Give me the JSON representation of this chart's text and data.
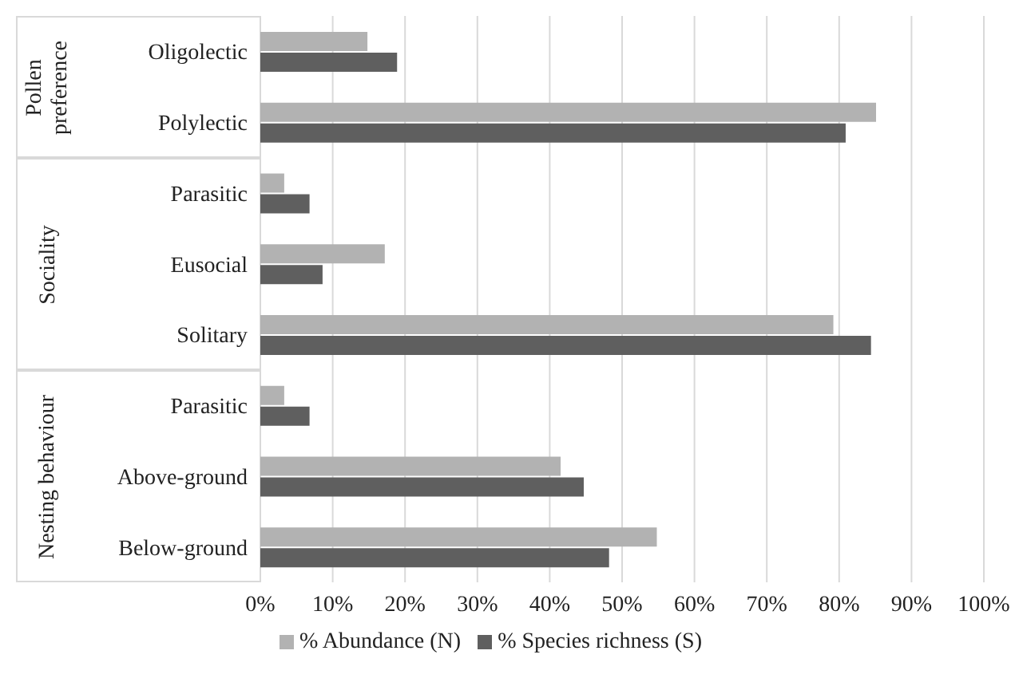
{
  "chart_data": {
    "type": "bar",
    "orientation": "horizontal",
    "categories": [
      "Oligolectic",
      "Polylectic",
      "Parasitic",
      "Eusocial",
      "Solitary",
      "Parasitic",
      "Above-ground",
      "Below-ground"
    ],
    "series": [
      {
        "name": "% Abundance (N)",
        "color": "#b2b2b2",
        "values": [
          14.8,
          85.1,
          3.3,
          17.2,
          79.2,
          3.3,
          41.5,
          54.8
        ]
      },
      {
        "name": "% Species richness (S)",
        "color": "#5f5f5f",
        "values": [
          18.9,
          80.9,
          6.8,
          8.6,
          84.4,
          6.8,
          44.7,
          48.2
        ]
      }
    ],
    "xlim": [
      0,
      100
    ],
    "xticks": [
      {
        "value": 0,
        "label": "0%"
      },
      {
        "value": 10,
        "label": "10%"
      },
      {
        "value": 20,
        "label": "20%"
      },
      {
        "value": 30,
        "label": "30%"
      },
      {
        "value": 40,
        "label": "40%"
      },
      {
        "value": 50,
        "label": "50%"
      },
      {
        "value": 60,
        "label": "60%"
      },
      {
        "value": 70,
        "label": "70%"
      },
      {
        "value": 80,
        "label": "80%"
      },
      {
        "value": 90,
        "label": "90%"
      },
      {
        "value": 100,
        "label": "100%"
      }
    ],
    "annotations": [
      "Pollen preference",
      "Sociality",
      "Nesting behaviour"
    ],
    "grid": "x",
    "legend": "bottom"
  }
}
